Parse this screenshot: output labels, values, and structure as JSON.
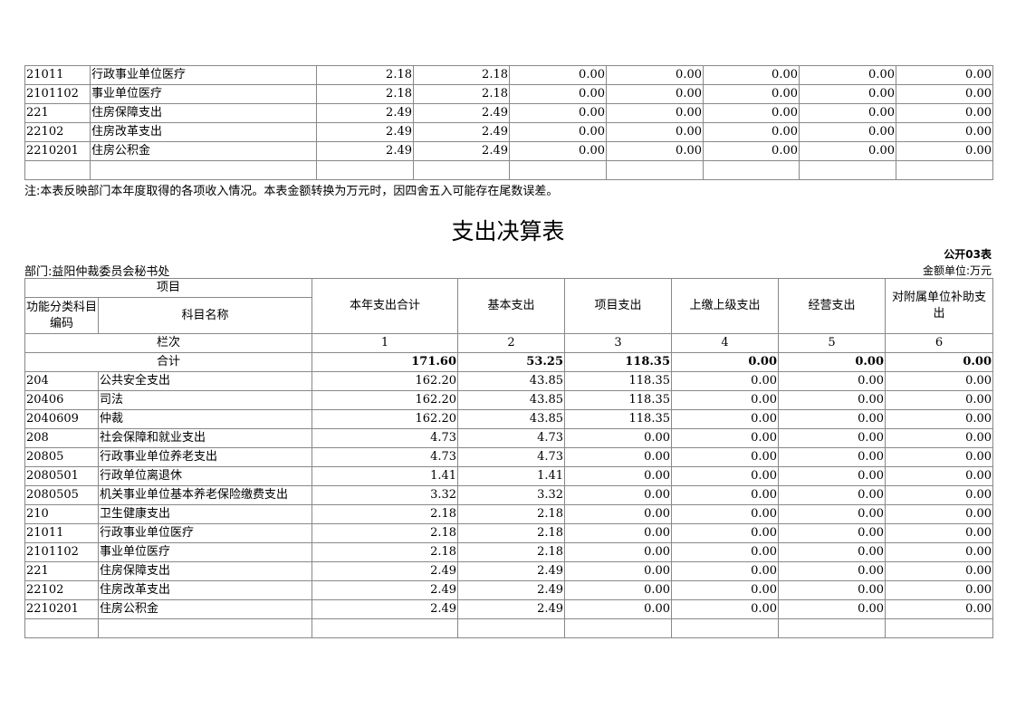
{
  "top_table": {
    "rows": [
      [
        "21011",
        "行政事业单位医疗",
        "2.18",
        "2.18",
        "0.00",
        "0.00",
        "0.00",
        "0.00",
        "0.00"
      ],
      [
        "2101102",
        "事业单位医疗",
        "2.18",
        "2.18",
        "0.00",
        "0.00",
        "0.00",
        "0.00",
        "0.00"
      ],
      [
        "221",
        "住房保障支出",
        "2.49",
        "2.49",
        "0.00",
        "0.00",
        "0.00",
        "0.00",
        "0.00"
      ],
      [
        "22102",
        "住房改革支出",
        "2.49",
        "2.49",
        "0.00",
        "0.00",
        "0.00",
        "0.00",
        "0.00"
      ],
      [
        "2210201",
        "住房公积金",
        "2.49",
        "2.49",
        "0.00",
        "0.00",
        "0.00",
        "0.00",
        "0.00"
      ],
      [
        "",
        "",
        "",
        "",
        "",
        "",
        "",
        "",
        ""
      ]
    ]
  },
  "note": "注:本表反映部门本年度取得的各项收入情况。本表金额转换为万元时，因四舍五入可能存在尾数误差。",
  "title": "支出决算表",
  "form_no": "公开03表",
  "department": "部门:益阳仲裁委员会秘书处",
  "unit": "金额单位:万元",
  "bottom_table": {
    "header": {
      "project": "项目",
      "code": "功能分类科目编码",
      "name": "科目名称",
      "cols": [
        "本年支出合计",
        "基本支出",
        "项目支出",
        "上缴上级支出",
        "经营支出",
        "对附属单位补助支出"
      ]
    },
    "col_no_label": "栏次",
    "col_nos": [
      "1",
      "2",
      "3",
      "4",
      "5",
      "6"
    ],
    "total_label": "合计",
    "totals": [
      "171.60",
      "53.25",
      "118.35",
      "0.00",
      "0.00",
      "0.00"
    ],
    "rows": [
      [
        "204",
        "公共安全支出",
        "162.20",
        "43.85",
        "118.35",
        "0.00",
        "0.00",
        "0.00"
      ],
      [
        "20406",
        "司法",
        "162.20",
        "43.85",
        "118.35",
        "0.00",
        "0.00",
        "0.00"
      ],
      [
        "2040609",
        "仲裁",
        "162.20",
        "43.85",
        "118.35",
        "0.00",
        "0.00",
        "0.00"
      ],
      [
        "208",
        "社会保障和就业支出",
        "4.73",
        "4.73",
        "0.00",
        "0.00",
        "0.00",
        "0.00"
      ],
      [
        "20805",
        "行政事业单位养老支出",
        "4.73",
        "4.73",
        "0.00",
        "0.00",
        "0.00",
        "0.00"
      ],
      [
        "2080501",
        "行政单位离退休",
        "1.41",
        "1.41",
        "0.00",
        "0.00",
        "0.00",
        "0.00"
      ],
      [
        "2080505",
        "机关事业单位基本养老保险缴费支出",
        "3.32",
        "3.32",
        "0.00",
        "0.00",
        "0.00",
        "0.00"
      ],
      [
        "210",
        "卫生健康支出",
        "2.18",
        "2.18",
        "0.00",
        "0.00",
        "0.00",
        "0.00"
      ],
      [
        "21011",
        "行政事业单位医疗",
        "2.18",
        "2.18",
        "0.00",
        "0.00",
        "0.00",
        "0.00"
      ],
      [
        "2101102",
        "事业单位医疗",
        "2.18",
        "2.18",
        "0.00",
        "0.00",
        "0.00",
        "0.00"
      ],
      [
        "221",
        "住房保障支出",
        "2.49",
        "2.49",
        "0.00",
        "0.00",
        "0.00",
        "0.00"
      ],
      [
        "22102",
        "住房改革支出",
        "2.49",
        "2.49",
        "0.00",
        "0.00",
        "0.00",
        "0.00"
      ],
      [
        "2210201",
        "住房公积金",
        "2.49",
        "2.49",
        "0.00",
        "0.00",
        "0.00",
        "0.00"
      ],
      [
        "",
        "",
        "",
        "",
        "",
        "",
        "",
        ""
      ]
    ]
  }
}
